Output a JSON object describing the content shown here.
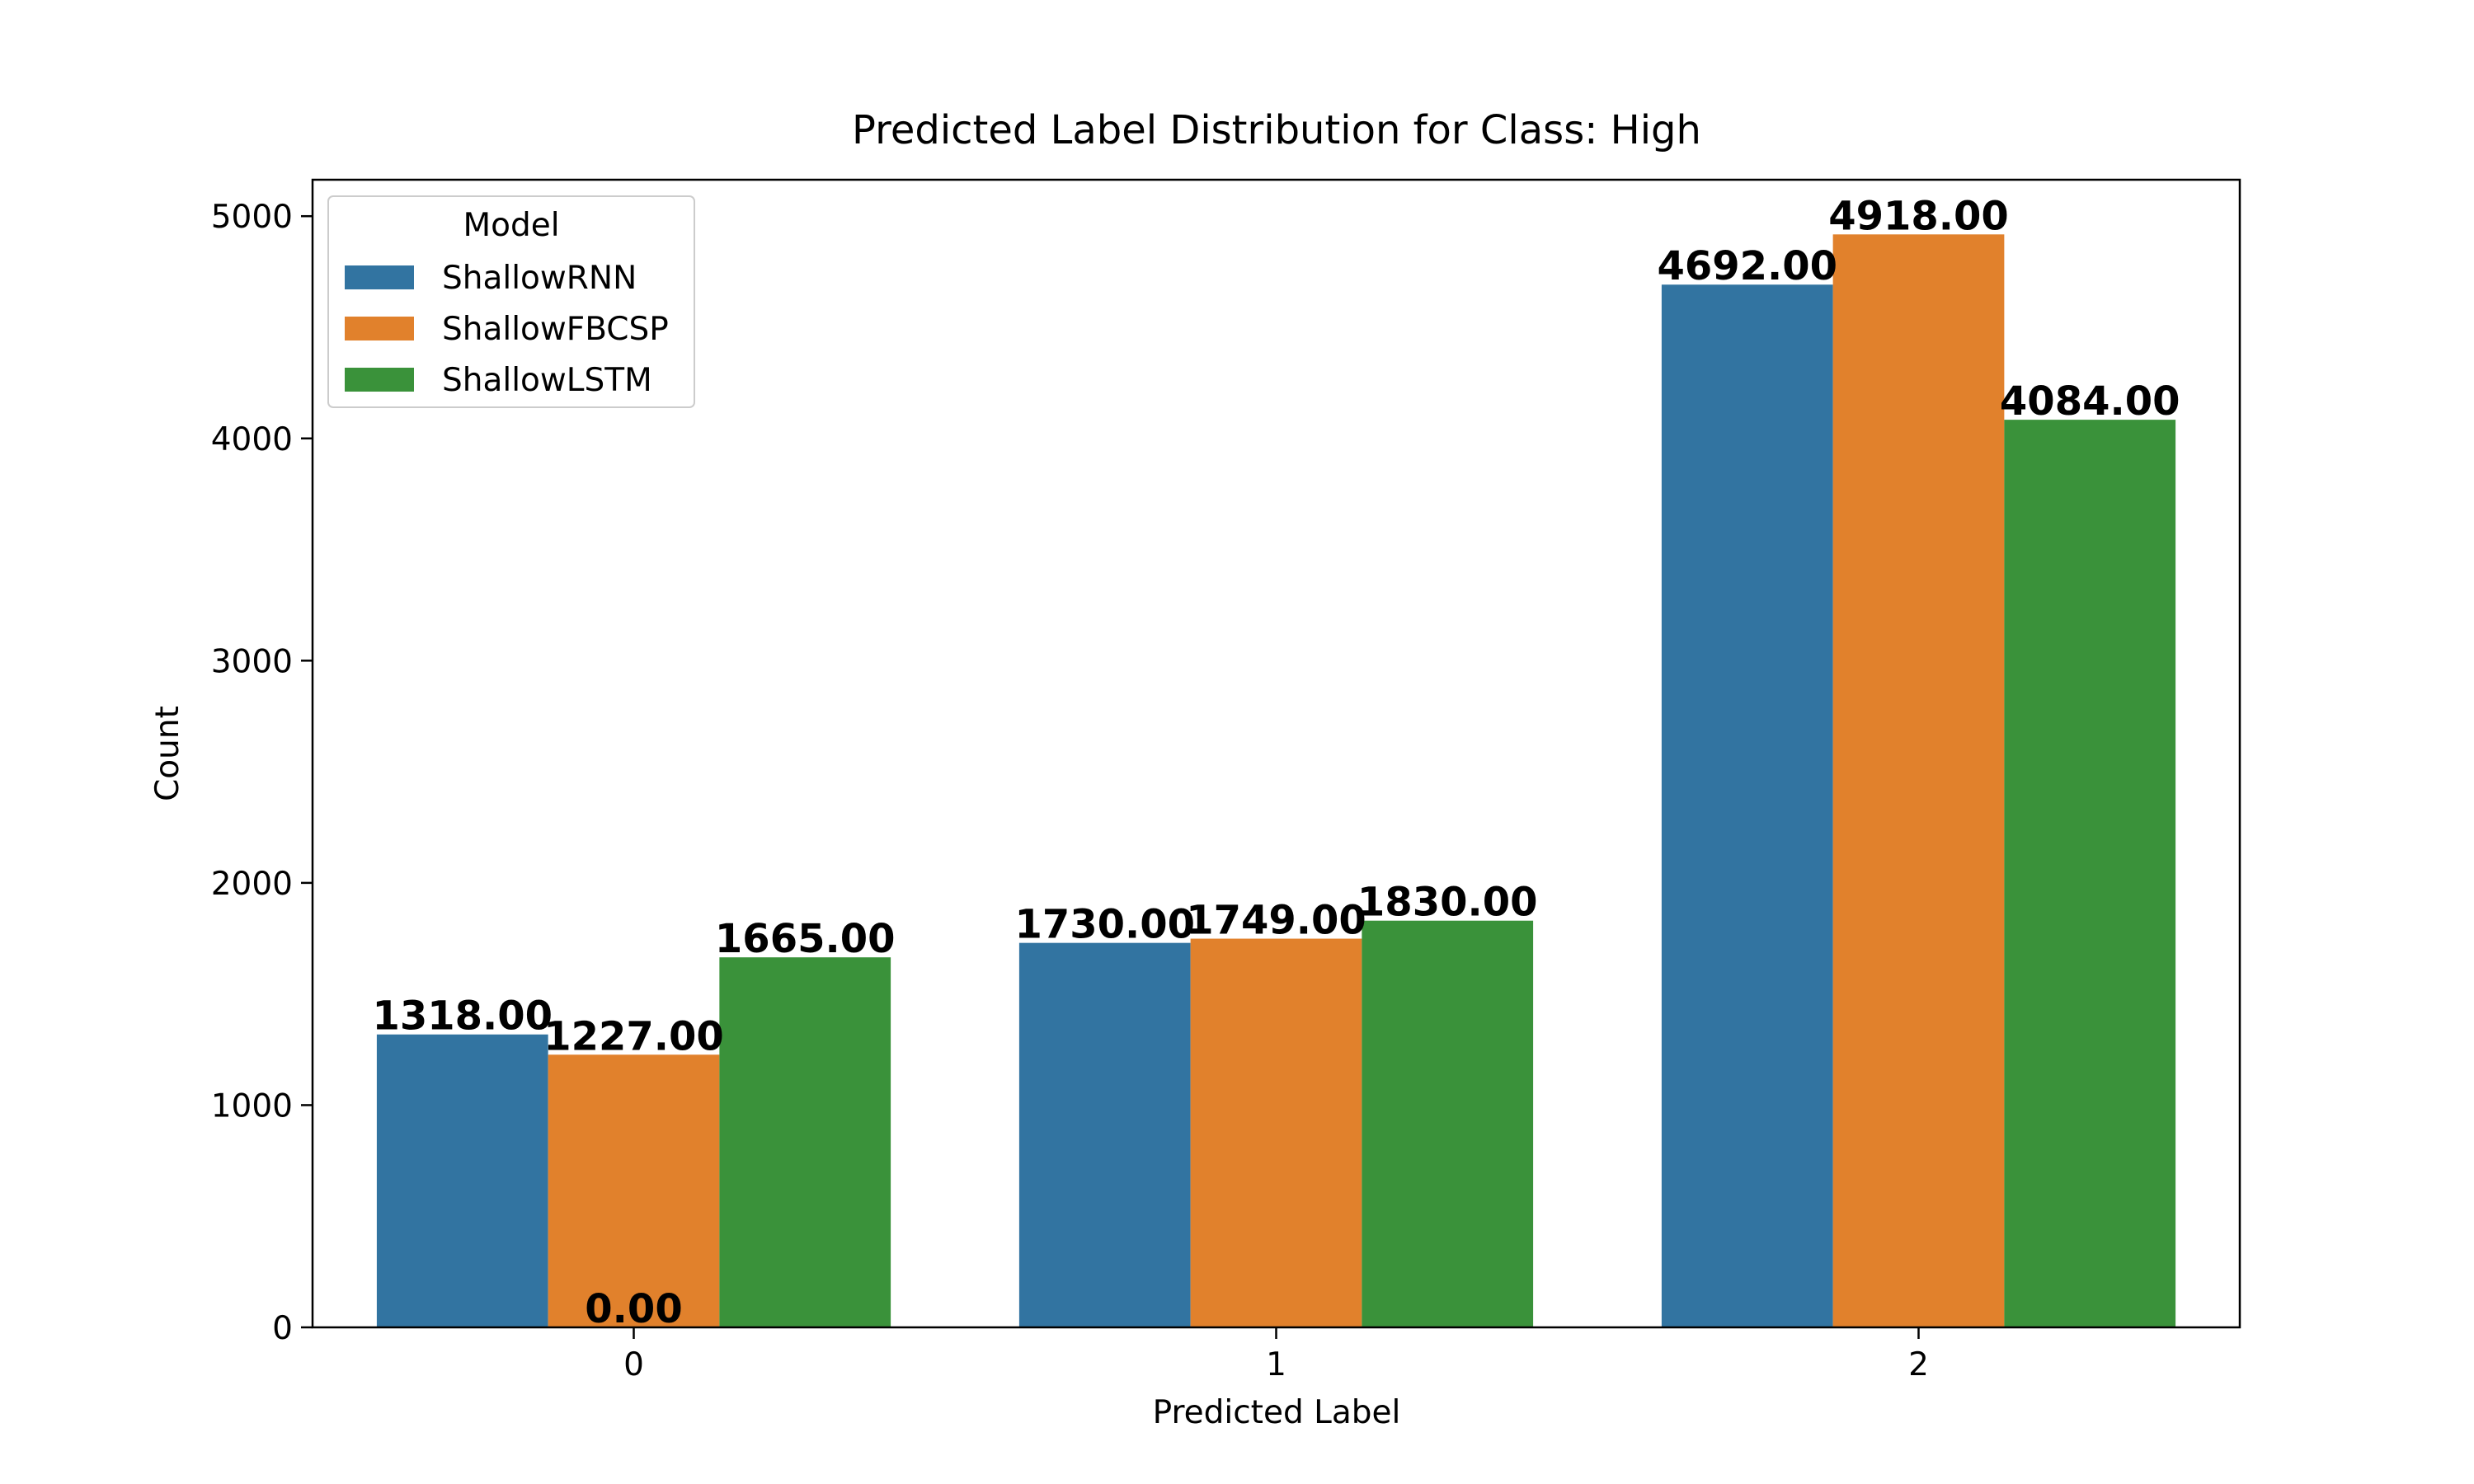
{
  "chart_data": {
    "type": "bar",
    "title": "Predicted Label Distribution for Class: High",
    "xlabel": "Predicted Label",
    "ylabel": "Count",
    "categories": [
      "0",
      "1",
      "2"
    ],
    "series": [
      {
        "name": "ShallowRNN",
        "color": "#3274a1",
        "values": [
          1318,
          1730,
          4692
        ],
        "labels": [
          "1318.00",
          "1730.00",
          "4692.00"
        ]
      },
      {
        "name": "ShallowFBCSP",
        "color": "#e1812c",
        "values": [
          1227,
          1749,
          4918
        ],
        "labels": [
          "1227.00",
          "1749.00",
          "4918.00"
        ]
      },
      {
        "name": "ShallowLSTM",
        "color": "#3a923a",
        "values": [
          1665,
          1830,
          4084
        ],
        "labels": [
          "1665.00",
          "1830.00",
          "4084.00"
        ]
      }
    ],
    "extra_annotation": {
      "label": "0.00",
      "category": "0",
      "value": 0
    },
    "yticks": [
      0,
      1000,
      2000,
      3000,
      4000,
      5000
    ],
    "ytick_labels": [
      "0",
      "1000",
      "2000",
      "3000",
      "4000",
      "5000"
    ],
    "ylim": [
      0,
      5164
    ],
    "legend": {
      "title": "Model",
      "position": "top-left"
    },
    "grid": false
  }
}
